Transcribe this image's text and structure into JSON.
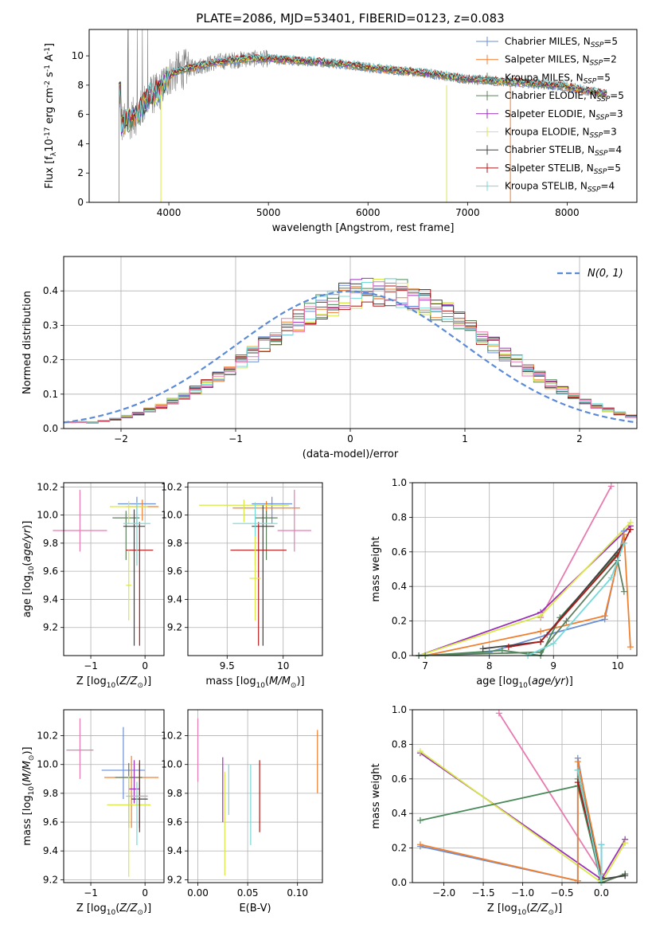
{
  "figure_title": "PLATE=2086, MJD=53401, FIBERID=0123, z=0.083",
  "colors": {
    "chabrier_miles": "#6a8fd6",
    "salpeter_miles": "#f07f30",
    "kroupa_miles": "#4a8a5a",
    "chabrier_elodie": "#5e7f5e",
    "salpeter_elodie": "#9a30b8",
    "kroupa_elodie": "#d9e84a",
    "chabrier_stelib": "#404040",
    "salpeter_stelib": "#b01818",
    "kroupa_stelib": "#74d9d9",
    "pink": "#e87ab0",
    "data_gray": "#808080",
    "normal_dashed": "#5b8bd6"
  },
  "chart_data": [
    {
      "id": "spectrum",
      "type": "line",
      "xlabel": "wavelength [Angstrom, rest frame]",
      "ylabel": "Flux [f$_\\lambda$10$^{-17}$ erg cm$^{-2}$ s$^{-1}$ A$^{-1}$]",
      "xlim": [
        3200,
        8700
      ],
      "ylim": [
        0,
        11.8
      ],
      "xticks": [
        4000,
        5000,
        6000,
        7000,
        8000
      ],
      "yticks": [
        0,
        2,
        4,
        6,
        8,
        10
      ],
      "grid": false,
      "legend_position": "top-right",
      "legend": [
        {
          "label": "Chabrier MILES, N",
          "sub": "SSP",
          "suffix": "=5",
          "color": "chabrier_miles"
        },
        {
          "label": "Salpeter MILES, N",
          "sub": "SSP",
          "suffix": "=2",
          "color": "salpeter_miles"
        },
        {
          "label": "Kroupa MILES, N",
          "sub": "SSP",
          "suffix": "=5",
          "color": "kroupa_miles"
        },
        {
          "label": "Chabrier ELODIE, N",
          "sub": "SSP",
          "suffix": "=5",
          "color": "chabrier_elodie"
        },
        {
          "label": "Salpeter ELODIE, N",
          "sub": "SSP",
          "suffix": "=3",
          "color": "salpeter_elodie"
        },
        {
          "label": "Kroupa ELODIE, N",
          "sub": "SSP",
          "suffix": "=3",
          "color": "kroupa_elodie"
        },
        {
          "label": "Chabrier STELIB, N",
          "sub": "SSP",
          "suffix": "=4",
          "color": "chabrier_stelib"
        },
        {
          "label": "Salpeter STELIB, N",
          "sub": "SSP",
          "suffix": "=5",
          "color": "salpeter_stelib"
        },
        {
          "label": "Kroupa STELIB, N",
          "sub": "SSP",
          "suffix": "=4",
          "color": "kroupa_stelib"
        }
      ],
      "continuum": [
        [
          3520,
          5.3
        ],
        [
          3600,
          5.6
        ],
        [
          3700,
          6.1
        ],
        [
          3800,
          7.3
        ],
        [
          3900,
          7.5
        ],
        [
          4000,
          8.6
        ],
        [
          4100,
          9.0
        ],
        [
          4300,
          9.3
        ],
        [
          4500,
          9.6
        ],
        [
          4800,
          9.8
        ],
        [
          5000,
          9.8
        ],
        [
          5200,
          9.7
        ],
        [
          5500,
          9.6
        ],
        [
          5800,
          9.4
        ],
        [
          6000,
          9.2
        ],
        [
          6300,
          9.0
        ],
        [
          6600,
          8.8
        ],
        [
          7000,
          8.4
        ],
        [
          7500,
          8.2
        ],
        [
          8000,
          7.9
        ],
        [
          8300,
          7.5
        ],
        [
          8400,
          7.4
        ]
      ]
    },
    {
      "id": "residuals",
      "type": "histogram",
      "xlabel": "(data-model)/error",
      "ylabel": "Normed distribution",
      "xlim": [
        -2.5,
        2.5
      ],
      "ylim": [
        0,
        0.5
      ],
      "xticks": [
        -2,
        -1,
        0,
        1,
        2
      ],
      "yticks": [
        0.0,
        0.1,
        0.2,
        0.3,
        0.4
      ],
      "grid": true,
      "legend": [
        {
          "label": "N(0, 1)",
          "style": "dashed",
          "color": "normal_dashed"
        }
      ],
      "bin_width": 0.1,
      "reference_density": [
        0.018,
        0.022,
        0.028,
        0.035,
        0.044,
        0.054,
        0.066,
        0.079,
        0.094,
        0.111,
        0.13,
        0.15,
        0.171,
        0.194,
        0.218,
        0.242,
        0.266,
        0.29,
        0.312,
        0.333,
        0.352,
        0.368,
        0.381,
        0.391,
        0.397,
        0.399,
        0.397,
        0.391,
        0.381,
        0.368,
        0.352,
        0.333,
        0.312,
        0.29,
        0.266,
        0.242,
        0.218,
        0.194,
        0.171,
        0.15,
        0.13,
        0.111,
        0.094,
        0.079,
        0.066,
        0.054,
        0.044,
        0.035,
        0.028,
        0.022
      ]
    },
    {
      "id": "age_vs_Z",
      "type": "errorbar",
      "xlabel": "Z [log$_{10}$($Z/Z_\\odot$)]",
      "ylabel": "age  [log$_{10}$($age/yr$)]",
      "xlim": [
        -1.5,
        0.35
      ],
      "ylim": [
        9.0,
        10.23
      ],
      "xticks": [
        -1,
        0
      ],
      "yticks": [
        9.2,
        9.4,
        9.6,
        9.8,
        10.0,
        10.2
      ],
      "grid": true,
      "points": [
        {
          "x": -0.15,
          "y": 10.08,
          "xerr": 0.35,
          "yerr": [
            0.14,
            0.05
          ],
          "color": "chabrier_miles"
        },
        {
          "x": -0.05,
          "y": 10.06,
          "xerr": 0.3,
          "yerr": [
            0.1,
            0.05
          ],
          "color": "salpeter_miles"
        },
        {
          "x": -0.35,
          "y": 9.98,
          "xerr": 0.25,
          "yerr": [
            0.3,
            0.05
          ],
          "color": "chabrier_elodie"
        },
        {
          "x": -0.3,
          "y": 10.06,
          "xerr": 0.35,
          "yerr": [
            0.12,
            0.04
          ],
          "color": "kroupa_elodie"
        },
        {
          "x": -0.2,
          "y": 9.92,
          "xerr": 0.2,
          "yerr": [
            0.85,
            0.12
          ],
          "color": "chabrier_stelib"
        },
        {
          "x": -0.1,
          "y": 9.75,
          "xerr": 0.25,
          "yerr": [
            0.68,
            0.2
          ],
          "color": "salpeter_stelib"
        },
        {
          "x": -0.15,
          "y": 9.94,
          "xerr": 0.25,
          "yerr": [
            0.3,
            0.15
          ],
          "color": "kroupa_stelib"
        },
        {
          "x": -1.2,
          "y": 9.89,
          "xerr": 0.5,
          "yerr": [
            0.15,
            0.29
          ],
          "color": "pink"
        },
        {
          "x": -0.3,
          "y": 9.5,
          "xerr": 0.05,
          "yerr": [
            0.25,
            0.25
          ],
          "color": "kroupa_elodie"
        }
      ]
    },
    {
      "id": "age_vs_mass",
      "type": "errorbar",
      "xlabel": "mass [log$_{10}$($M/M_\\odot$)]",
      "ylabel": "",
      "xlim": [
        9.15,
        10.35
      ],
      "ylim": [
        9.0,
        10.23
      ],
      "xticks": [
        9.5,
        10.0
      ],
      "yticks": [
        9.2,
        9.4,
        9.6,
        9.8,
        10.0,
        10.2
      ],
      "grid": true,
      "points": [
        {
          "x": 9.9,
          "y": 10.08,
          "xerr": 0.18,
          "yerr": [
            0.14,
            0.05
          ],
          "color": "chabrier_miles"
        },
        {
          "x": 9.85,
          "y": 10.05,
          "xerr": 0.3,
          "yerr": [
            0.1,
            0.05
          ],
          "color": "salpeter_miles"
        },
        {
          "x": 9.85,
          "y": 9.98,
          "xerr": 0.1,
          "yerr": [
            0.3,
            0.05
          ],
          "color": "chabrier_elodie"
        },
        {
          "x": 9.65,
          "y": 10.07,
          "xerr": 0.4,
          "yerr": [
            0.12,
            0.04
          ],
          "color": "kroupa_elodie"
        },
        {
          "x": 9.82,
          "y": 9.92,
          "xerr": 0.1,
          "yerr": [
            0.85,
            0.15
          ],
          "color": "chabrier_stelib"
        },
        {
          "x": 9.78,
          "y": 9.75,
          "xerr": 0.25,
          "yerr": [
            0.68,
            0.2
          ],
          "color": "salpeter_stelib"
        },
        {
          "x": 9.75,
          "y": 9.94,
          "xerr": 0.2,
          "yerr": [
            0.3,
            0.15
          ],
          "color": "kroupa_stelib"
        },
        {
          "x": 10.1,
          "y": 9.89,
          "xerr": 0.15,
          "yerr": [
            0.15,
            0.29
          ],
          "color": "pink"
        },
        {
          "x": 9.75,
          "y": 9.55,
          "xerr": 0.05,
          "yerr": [
            0.3,
            0.3
          ],
          "color": "kroupa_elodie"
        }
      ]
    },
    {
      "id": "weight_vs_age",
      "type": "line",
      "xlabel": "age  [log$_{10}$($age/yr$)]",
      "ylabel": "mass weight",
      "xlim": [
        6.8,
        10.3
      ],
      "ylim": [
        0,
        1.0
      ],
      "xticks": [
        7,
        8,
        9,
        10
      ],
      "yticks": [
        0.0,
        0.2,
        0.4,
        0.6,
        0.8,
        1.0
      ],
      "grid": true,
      "series": [
        {
          "color": "pink",
          "x": [
            8.8,
            9.9
          ],
          "y": [
            0.22,
            0.98
          ]
        },
        {
          "color": "salpeter_elodie",
          "x": [
            6.9,
            8.8,
            10.2
          ],
          "y": [
            0.0,
            0.25,
            0.75
          ]
        },
        {
          "color": "kroupa_elodie",
          "x": [
            6.9,
            8.8,
            10.2
          ],
          "y": [
            0.0,
            0.23,
            0.77
          ]
        },
        {
          "color": "chabrier_miles",
          "x": [
            6.9,
            8.0,
            8.9,
            9.8,
            10.1
          ],
          "y": [
            0.0,
            0.02,
            0.12,
            0.21,
            0.72
          ]
        },
        {
          "color": "salpeter_miles",
          "x": [
            7.0,
            8.8,
            9.8,
            10.1,
            10.2
          ],
          "y": [
            0.0,
            0.14,
            0.23,
            0.7,
            0.05
          ]
        },
        {
          "color": "kroupa_miles",
          "x": [
            7.0,
            8.2,
            8.8,
            9.1,
            10.0
          ],
          "y": [
            0.0,
            0.03,
            0.0,
            0.22,
            0.59
          ]
        },
        {
          "color": "chabrier_elodie",
          "x": [
            6.9,
            8.8,
            9.2,
            10.0,
            10.1
          ],
          "y": [
            0.0,
            0.02,
            0.2,
            0.55,
            0.37
          ]
        },
        {
          "color": "chabrier_stelib",
          "x": [
            7.9,
            8.8,
            10.1
          ],
          "y": [
            0.04,
            0.08,
            0.65
          ]
        },
        {
          "color": "salpeter_stelib",
          "x": [
            8.3,
            8.8,
            10.0,
            10.2
          ],
          "y": [
            0.05,
            0.08,
            0.58,
            0.73
          ]
        },
        {
          "color": "kroupa_stelib",
          "x": [
            8.6,
            9.0,
            9.9,
            10.1
          ],
          "y": [
            0.0,
            0.07,
            0.45,
            0.65
          ]
        }
      ]
    },
    {
      "id": "mass_vs_Z",
      "type": "errorbar",
      "xlabel": "Z [log$_{10}$($Z/Z_\\odot$)]",
      "ylabel": "mass [log$_{10}$($M/M_\\odot$)]",
      "xlim": [
        -1.5,
        0.35
      ],
      "ylim": [
        9.18,
        10.38
      ],
      "xticks": [
        -1,
        0
      ],
      "yticks": [
        9.2,
        9.4,
        9.6,
        9.8,
        10.0,
        10.2
      ],
      "grid": true,
      "points": [
        {
          "x": -0.4,
          "y": 9.96,
          "xerr": 0.4,
          "yerr": [
            0.2,
            0.3
          ],
          "color": "chabrier_miles"
        },
        {
          "x": -0.25,
          "y": 9.91,
          "xerr": 0.5,
          "yerr": [
            0.35,
            0.15
          ],
          "color": "salpeter_miles"
        },
        {
          "x": -0.3,
          "y": 9.91,
          "xerr": 0.25,
          "yerr": [
            0.35,
            0.1
          ],
          "color": "chabrier_elodie"
        },
        {
          "x": -0.2,
          "y": 9.83,
          "xerr": 0.1,
          "yerr": [
            0.1,
            0.2
          ],
          "color": "salpeter_elodie"
        },
        {
          "x": -0.3,
          "y": 9.72,
          "xerr": 0.4,
          "yerr": [
            0.5,
            0.2
          ],
          "color": "kroupa_elodie"
        },
        {
          "x": -0.1,
          "y": 9.76,
          "xerr": 0.15,
          "yerr": [
            0.2,
            0.25
          ],
          "color": "chabrier_stelib"
        },
        {
          "x": -0.1,
          "y": 9.78,
          "xerr": 0.15,
          "yerr": [
            0.25,
            0.25
          ],
          "color": "salpeter_stelib"
        },
        {
          "x": -0.15,
          "y": 9.78,
          "xerr": 0.2,
          "yerr": [
            0.34,
            0.1
          ],
          "color": "kroupa_stelib"
        },
        {
          "x": -1.2,
          "y": 10.1,
          "xerr": 0.25,
          "yerr": [
            0.2,
            0.22
          ],
          "color": "pink"
        }
      ]
    },
    {
      "id": "mass_vs_ebv",
      "type": "errorbar",
      "xlabel": "E(B-V)",
      "ylabel": "",
      "xlim": [
        -0.01,
        0.125
      ],
      "ylim": [
        9.18,
        10.38
      ],
      "xticks": [
        0.0,
        0.05,
        0.1
      ],
      "yticks": [
        9.2,
        9.4,
        9.6,
        9.8,
        10.0,
        10.2
      ],
      "grid": true,
      "points": [
        {
          "x": 0.0,
          "y": 10.1,
          "xerr": 0,
          "yerr": [
            0.22,
            0.22
          ],
          "color": "pink"
        },
        {
          "x": 0.025,
          "y": 9.8,
          "xerr": 0,
          "yerr": [
            0.2,
            0.25
          ],
          "color": "salpeter_elodie"
        },
        {
          "x": 0.027,
          "y": 9.7,
          "xerr": 0,
          "yerr": [
            0.47,
            0.25
          ],
          "color": "kroupa_elodie"
        },
        {
          "x": 0.031,
          "y": 9.85,
          "xerr": 0,
          "yerr": [
            0.2,
            0.15
          ],
          "color": "kroupa_stelib"
        },
        {
          "x": 0.053,
          "y": 9.72,
          "xerr": 0,
          "yerr": [
            0.28,
            0.28
          ],
          "color": "kroupa_stelib"
        },
        {
          "x": 0.062,
          "y": 9.78,
          "xerr": 0,
          "yerr": [
            0.25,
            0.25
          ],
          "color": "salpeter_stelib"
        },
        {
          "x": 0.12,
          "y": 10.02,
          "xerr": 0,
          "yerr": [
            0.22,
            0.22
          ],
          "color": "salpeter_miles"
        }
      ]
    },
    {
      "id": "weight_vs_Z",
      "type": "line",
      "xlabel": "Z [log$_{10}$($Z/Z_\\odot$)]",
      "ylabel": "mass weight",
      "xlim": [
        -2.4,
        0.45
      ],
      "ylim": [
        0,
        1.0
      ],
      "xticks": [
        -2.0,
        -1.5,
        -1.0,
        -0.5,
        0.0
      ],
      "yticks": [
        0.0,
        0.2,
        0.4,
        0.6,
        0.8,
        1.0
      ],
      "grid": true,
      "series": [
        {
          "color": "pink",
          "x": [
            -1.3,
            0.0
          ],
          "y": [
            0.98,
            0.05
          ]
        },
        {
          "color": "salpeter_elodie",
          "x": [
            -2.3,
            0.0,
            0.3
          ],
          "y": [
            0.75,
            0.02,
            0.25
          ]
        },
        {
          "color": "kroupa_elodie",
          "x": [
            -2.3,
            0.0,
            0.3
          ],
          "y": [
            0.76,
            0.0,
            0.23
          ]
        },
        {
          "color": "chabrier_miles",
          "x": [
            -2.3,
            -0.3,
            -0.3,
            0.0,
            0.0
          ],
          "y": [
            0.21,
            0.01,
            0.72,
            0.0,
            0.22
          ]
        },
        {
          "color": "salpeter_miles",
          "x": [
            -2.3,
            -0.3,
            -0.3,
            0.0
          ],
          "y": [
            0.22,
            0.01,
            0.7,
            0.05
          ]
        },
        {
          "color": "kroupa_miles",
          "x": [
            -2.3,
            -0.3,
            0.0,
            0.3
          ],
          "y": [
            0.36,
            0.56,
            0.0,
            0.05
          ]
        },
        {
          "color": "chabrier_elodie",
          "x": [
            -0.3,
            0.0,
            0.3
          ],
          "y": [
            0.6,
            0.0,
            0.05
          ]
        },
        {
          "color": "chabrier_stelib",
          "x": [
            -0.3,
            0.0,
            0.3
          ],
          "y": [
            0.65,
            0.02,
            0.04
          ]
        },
        {
          "color": "salpeter_stelib",
          "x": [
            -0.3,
            0.0
          ],
          "y": [
            0.58,
            0.03
          ]
        },
        {
          "color": "kroupa_stelib",
          "x": [
            -0.3,
            0.0,
            0.0
          ],
          "y": [
            0.65,
            0.0,
            0.22
          ]
        }
      ]
    }
  ]
}
